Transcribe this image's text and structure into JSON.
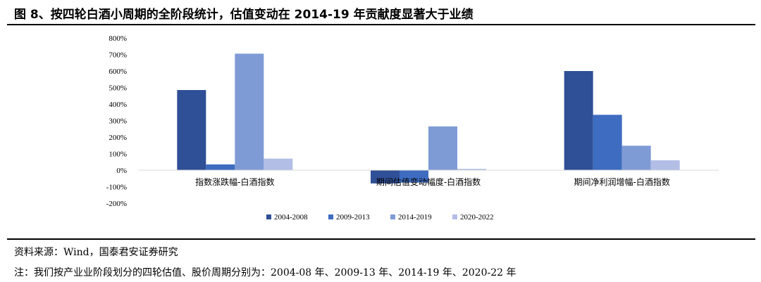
{
  "title": "图 8、按四轮白酒小周期的全阶段统计，估值变动在 2014-19 年贡献度显著大于业绩",
  "source": "资料来源：Wind，国泰君安证券研究",
  "note": "注：我们按产业业阶段划分的四轮估值、股价周期分别为：2004-08 年、2009-13 年、2014-19 年、2020-22 年",
  "chart_data": {
    "type": "bar",
    "categories": [
      "指数涨跌幅-白酒指数",
      "期间估值变动幅度-白酒指数",
      "期间净利润增幅-白酒指数"
    ],
    "series": [
      {
        "name": "2004-2008",
        "color": "#2f4f96",
        "values": [
          485,
          -80,
          600
        ]
      },
      {
        "name": "2009-2013",
        "color": "#3d6cc0",
        "values": [
          35,
          -75,
          335
        ]
      },
      {
        "name": "2014-2019",
        "color": "#7f9bd6",
        "values": [
          705,
          265,
          148
        ]
      },
      {
        "name": "2020-2022",
        "color": "#b3bee6",
        "values": [
          70,
          8,
          60
        ]
      }
    ],
    "yticks": [
      "800%",
      "700%",
      "600%",
      "500%",
      "400%",
      "300%",
      "200%",
      "100%",
      "0%",
      "-100%",
      "-200%"
    ],
    "ylim": [
      -200,
      800
    ],
    "unit": "%",
    "grid": false,
    "legend": "bottom"
  }
}
